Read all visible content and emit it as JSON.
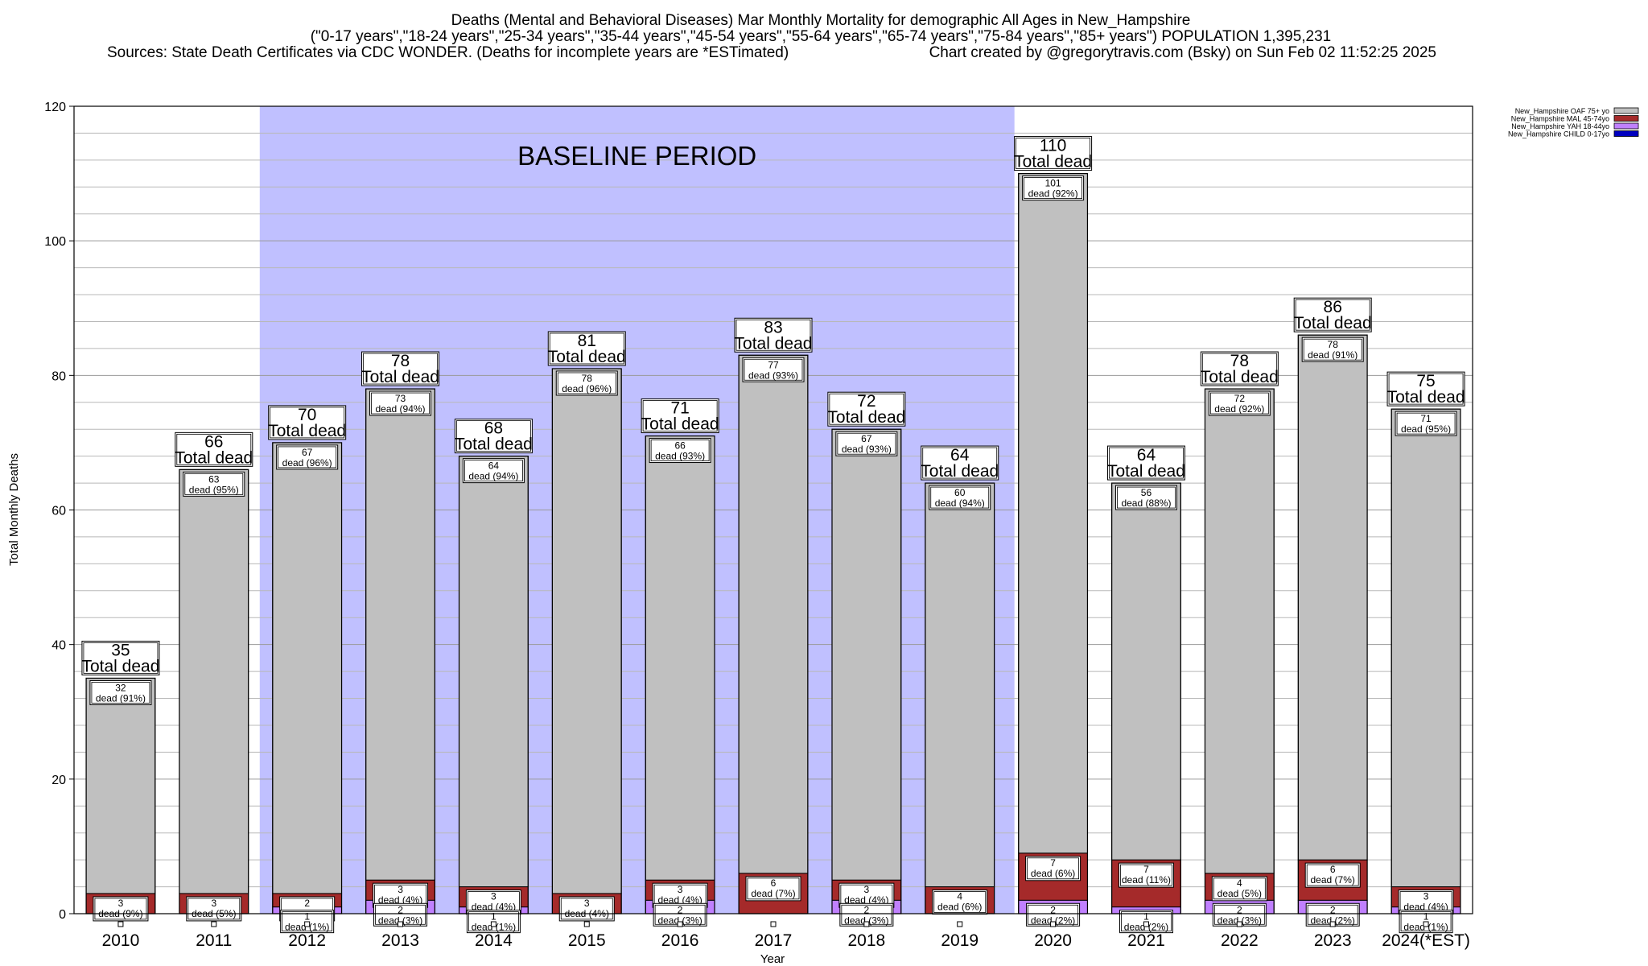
{
  "header": {
    "title_line1": "Deaths (Mental and Behavioral Diseases) Mar Monthly Mortality for demographic All Ages in New_Hampshire",
    "title_line2": "(\"0-17 years\",\"18-24 years\",\"25-34 years\",\"35-44 years\",\"45-54 years\",\"55-64 years\",\"65-74 years\",\"75-84 years\",\"85+ years\") POPULATION 1,395,231",
    "title_line3_left": "Sources: State Death Certificates via CDC WONDER. (Deaths for incomplete years are *ESTimated)",
    "title_line3_right": "Chart created by @gregorytravis.com (Bsky) on Sun Feb 02 11:52:25 2025"
  },
  "labels": {
    "total_dead": "Total dead",
    "dead_word": "dead"
  },
  "colors": {
    "oaf": "#c0c0c0",
    "mal": "#a52a2a",
    "yah": "#c080ff",
    "child": "#0000c0",
    "baseline": "#c0c0ff"
  },
  "chart_data": {
    "type": "bar",
    "stacked": true,
    "xlabel": "Year",
    "ylabel": "Total Monthly Deaths",
    "ylim": [
      0,
      120
    ],
    "yticks": [
      0,
      20,
      40,
      60,
      80,
      100,
      120
    ],
    "grid": true,
    "legend_position": "top-right",
    "baseline_label": "BASELINE PERIOD",
    "baseline_categories": [
      "2012",
      "2019"
    ],
    "categories": [
      "2010",
      "2011",
      "2012",
      "2013",
      "2014",
      "2015",
      "2016",
      "2017",
      "2018",
      "2019",
      "2020",
      "2021",
      "2022",
      "2023",
      "2024(*EST)"
    ],
    "totals": [
      35,
      66,
      70,
      78,
      68,
      81,
      71,
      83,
      72,
      64,
      110,
      64,
      78,
      86,
      75
    ],
    "series": [
      {
        "name": "New_Hampshire OAF 75+ yo",
        "values": [
          32,
          63,
          67,
          73,
          64,
          78,
          66,
          77,
          67,
          60,
          101,
          56,
          72,
          78,
          71
        ],
        "pct": [
          "91%",
          "95%",
          "96%",
          "94%",
          "94%",
          "96%",
          "93%",
          "93%",
          "93%",
          "94%",
          "92%",
          "88%",
          "92%",
          "91%",
          "95%"
        ]
      },
      {
        "name": "New_Hampshire MAL 45-74yo",
        "values": [
          3,
          3,
          2,
          3,
          3,
          3,
          3,
          6,
          3,
          4,
          7,
          7,
          4,
          6,
          3
        ],
        "pct": [
          "9%",
          "5%",
          "",
          "4%",
          "4%",
          "4%",
          "4%",
          "7%",
          "4%",
          "6%",
          "6%",
          "11%",
          "5%",
          "7%",
          "4%"
        ]
      },
      {
        "name": "New_Hampshire YAH 18-44yo",
        "values": [
          0,
          0,
          1,
          2,
          1,
          0,
          2,
          0,
          2,
          0,
          2,
          1,
          2,
          2,
          1
        ],
        "pct": [
          "",
          "",
          "1%",
          "3%",
          "1%",
          "",
          "3%",
          "",
          "3%",
          "",
          "2%",
          "2%",
          "3%",
          "2%",
          "1%"
        ]
      },
      {
        "name": "New_Hampshire CHILD 0-17yo",
        "values": [
          0,
          0,
          0,
          0,
          0,
          0,
          0,
          0,
          0,
          0,
          0,
          0,
          0,
          0,
          0
        ]
      }
    ]
  }
}
